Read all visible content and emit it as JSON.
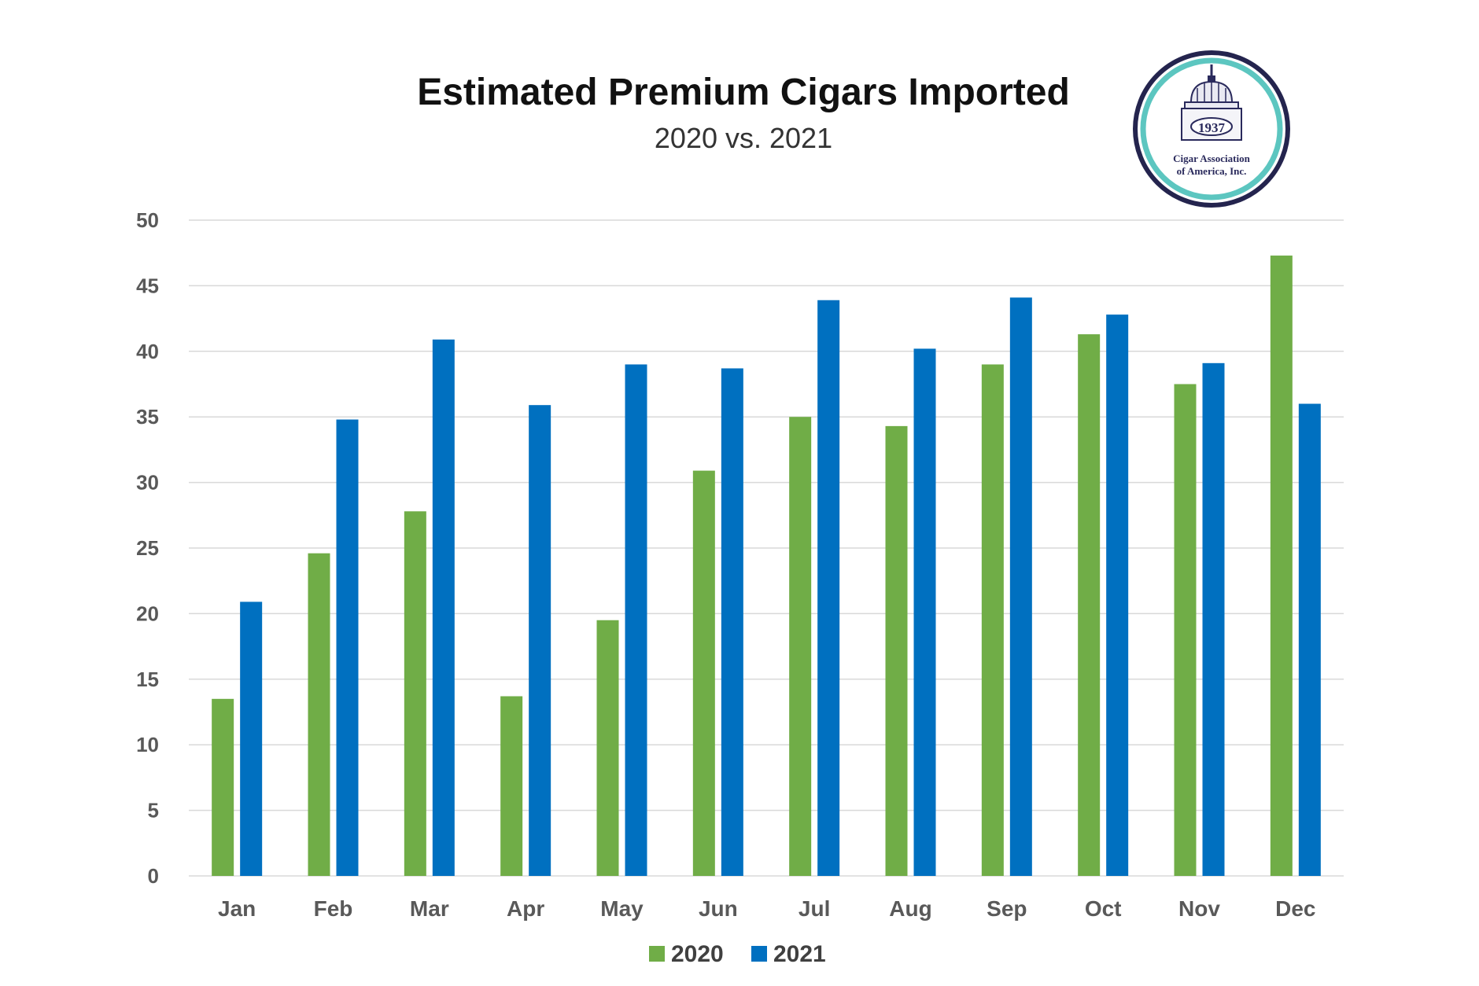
{
  "chart_data": {
    "type": "bar",
    "title": "Estimated Premium Cigars Imported",
    "subtitle": "2020 vs. 2021",
    "xlabel": "",
    "ylabel": "",
    "ylim": [
      0,
      50
    ],
    "yticks": [
      0,
      5,
      10,
      15,
      20,
      25,
      30,
      35,
      40,
      45,
      50
    ],
    "grid": true,
    "legend_position": "bottom-center",
    "categories": [
      "Jan",
      "Feb",
      "Mar",
      "Apr",
      "May",
      "Jun",
      "Jul",
      "Aug",
      "Sep",
      "Oct",
      "Nov",
      "Dec"
    ],
    "series": [
      {
        "name": "2020",
        "color": "#70ad47",
        "values": [
          13.5,
          24.6,
          27.8,
          13.7,
          19.5,
          30.9,
          35.0,
          34.3,
          39.0,
          41.3,
          37.5,
          47.3
        ]
      },
      {
        "name": "2021",
        "color": "#0070c0",
        "values": [
          20.9,
          34.8,
          40.9,
          35.9,
          39.0,
          38.7,
          43.9,
          40.2,
          44.1,
          42.8,
          39.1,
          36.0
        ]
      }
    ]
  },
  "logo": {
    "year": "1937",
    "line1": "Cigar Association",
    "line2": "of America, Inc."
  },
  "colors": {
    "gridline": "#d9d9d9",
    "axis_line": "#d9d9d9",
    "logo_ring_outer": "#24244e",
    "logo_ring_inner": "#5cc6c0"
  }
}
